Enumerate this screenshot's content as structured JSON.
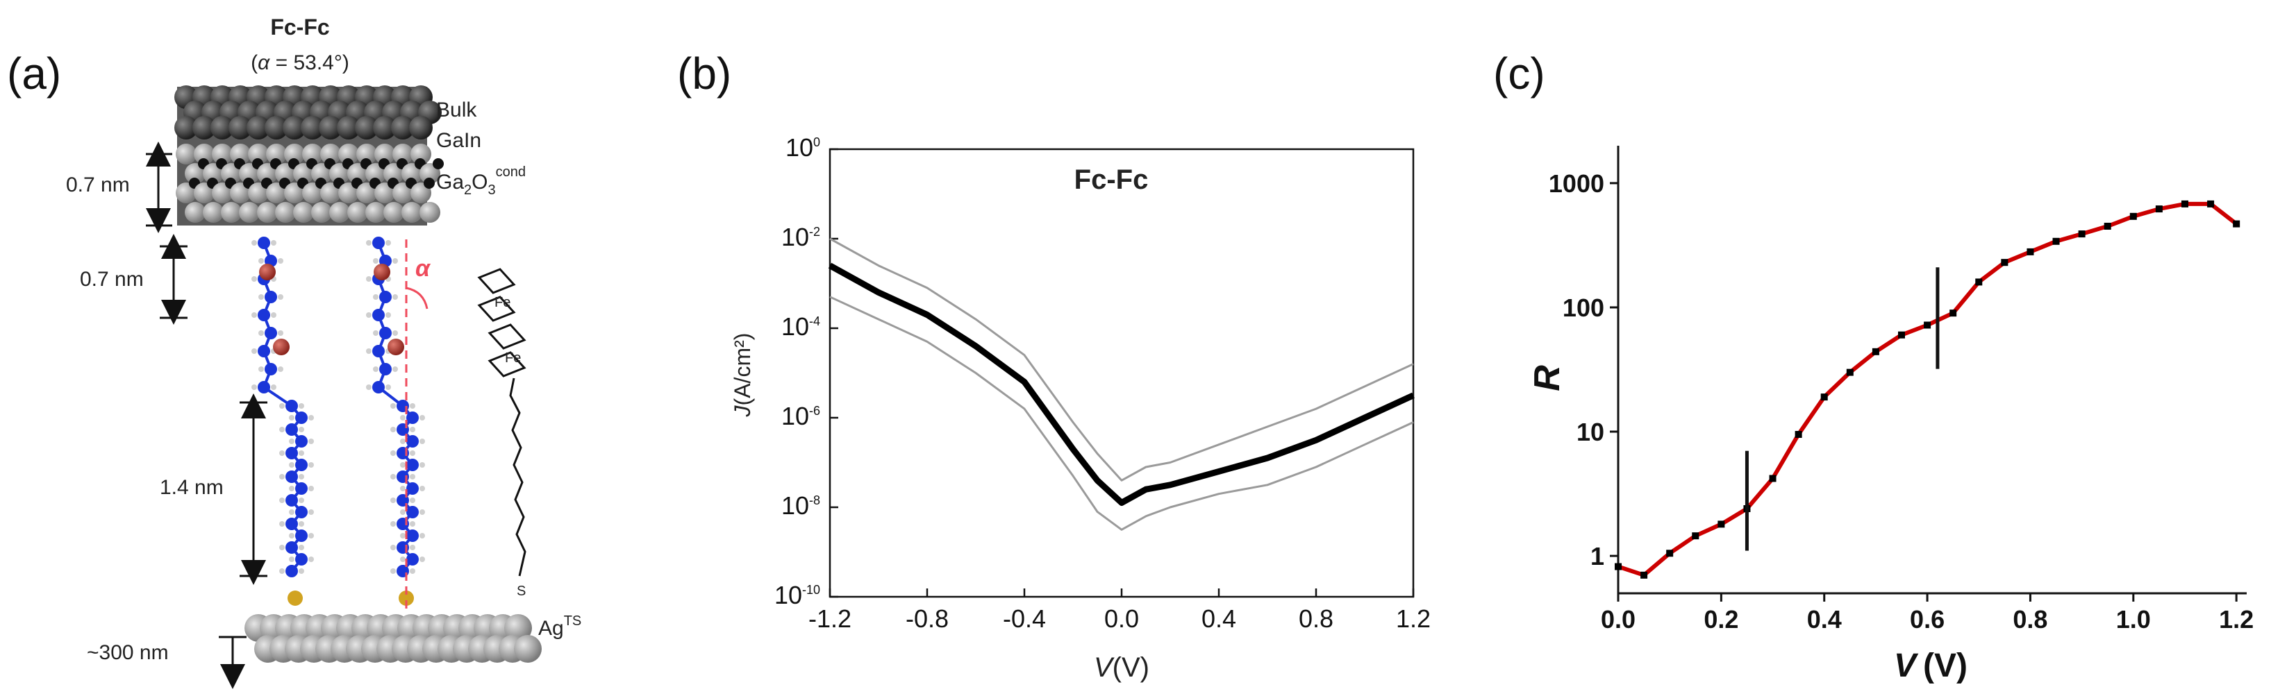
{
  "panel_labels": {
    "a": "(a)",
    "b": "(b)",
    "c": "(c)"
  },
  "schematic": {
    "title": "Fc-Fc",
    "angle_prefix": "(",
    "angle_symbol": "α",
    "angle_value": " = 53.4°)",
    "alpha_mark": "α",
    "layers": {
      "bulk": "Bulk",
      "gain": "GaIn",
      "oxide": "Ga",
      "oxide_sub": "2",
      "oxide_mid": "O",
      "oxide_sub2": "3",
      "oxide_sup": "cond"
    },
    "dims": {
      "d1": "0.7 nm",
      "d2": "0.7 nm",
      "d3": "1.4 nm",
      "d4": "~300 nm"
    },
    "electrode": "Ag",
    "electrode_sup": "TS",
    "structure_labels": {
      "fe": "Fe",
      "s": "S"
    },
    "colors": {
      "atom": "#1a35d8",
      "iron": "#b3372f",
      "sulfur": "#d1a321",
      "dashed": "#ef4b5c",
      "bulk_sphere": "#3a3a3a",
      "substrate": "#9a9a9a"
    }
  },
  "chart_data": [
    {
      "type": "line",
      "panel": "b",
      "title": "Fc-Fc",
      "xlabel": "V",
      "xlabel_unit": "(V)",
      "ylabel": "J",
      "ylabel_unit": "(A/cm²)",
      "xlim": [
        -1.2,
        1.2
      ],
      "ylim_log10": [
        -10,
        0
      ],
      "yscale": "log",
      "x_ticks": [
        "-1.2",
        "-0.8",
        "-0.4",
        "0.0",
        "0.4",
        "0.8",
        "1.2"
      ],
      "y_ticks": [
        {
          "base": "10",
          "exp": "0"
        },
        {
          "base": "10",
          "exp": "-2"
        },
        {
          "base": "10",
          "exp": "-4"
        },
        {
          "base": "10",
          "exp": "-6"
        },
        {
          "base": "10",
          "exp": "-8"
        },
        {
          "base": "10",
          "exp": "-10"
        }
      ],
      "grid": false,
      "x": [
        -1.2,
        -1.0,
        -0.8,
        -0.6,
        -0.4,
        -0.2,
        -0.1,
        0.0,
        0.1,
        0.2,
        0.4,
        0.6,
        0.8,
        1.0,
        1.2
      ],
      "series": [
        {
          "role": "mean",
          "log10_J": [
            -2.6,
            -3.2,
            -3.7,
            -4.4,
            -5.2,
            -6.7,
            -7.4,
            -7.9,
            -7.6,
            -7.5,
            -7.2,
            -6.9,
            -6.5,
            -6.0,
            -5.5
          ],
          "color": "#000000"
        },
        {
          "role": "upper",
          "log10_J": [
            -2.0,
            -2.6,
            -3.1,
            -3.8,
            -4.6,
            -6.1,
            -6.8,
            -7.4,
            -7.1,
            -7.0,
            -6.6,
            -6.2,
            -5.8,
            -5.3,
            -4.8
          ],
          "color": "#9a9a9a"
        },
        {
          "role": "lower",
          "log10_J": [
            -3.3,
            -3.8,
            -4.3,
            -5.0,
            -5.8,
            -7.3,
            -8.1,
            -8.5,
            -8.2,
            -8.0,
            -7.7,
            -7.5,
            -7.1,
            -6.6,
            -6.1
          ],
          "color": "#9a9a9a"
        }
      ]
    },
    {
      "type": "line",
      "panel": "c",
      "xlabel": "V",
      "xlabel_unit": "(V)",
      "ylabel": "R",
      "xlim": [
        0.0,
        1.22
      ],
      "ylim": [
        0.5,
        2000
      ],
      "yscale": "log",
      "x_ticks": [
        "0.0",
        "0.2",
        "0.4",
        "0.6",
        "0.8",
        "1.0",
        "1.2"
      ],
      "y_ticks": [
        "1",
        "10",
        "100",
        "1000"
      ],
      "grid": false,
      "line_color": "#cc0000",
      "marker_color": "#000000",
      "x": [
        0.0,
        0.05,
        0.1,
        0.15,
        0.2,
        0.25,
        0.3,
        0.35,
        0.4,
        0.45,
        0.5,
        0.55,
        0.6,
        0.65,
        0.7,
        0.75,
        0.8,
        0.85,
        0.9,
        0.95,
        1.0,
        1.05,
        1.1,
        1.15,
        1.2
      ],
      "values": [
        0.82,
        0.7,
        1.05,
        1.45,
        1.8,
        2.4,
        4.2,
        9.5,
        19,
        30,
        44,
        60,
        72,
        90,
        160,
        230,
        280,
        340,
        390,
        450,
        540,
        620,
        680,
        680,
        470
      ],
      "vertical_markers": [
        {
          "x": 0.25,
          "y_low": 1.1,
          "y_high": 7.0
        },
        {
          "x": 0.62,
          "y_low": 32,
          "y_high": 210
        }
      ]
    }
  ]
}
